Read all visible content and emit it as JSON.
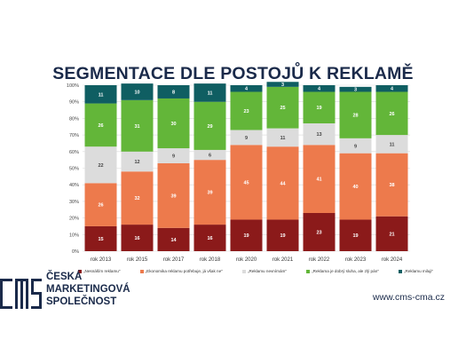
{
  "chart_data": {
    "type": "bar",
    "stacked": true,
    "title": "SEGMENTACE DLE POSTOJŮ K REKLAMĚ",
    "categories": [
      "rok 2013",
      "rok 2015",
      "rok 2017",
      "rok 2018",
      "rok 2020",
      "rok 2021",
      "rok 2022",
      "rok 2023",
      "rok 2024"
    ],
    "ylim": [
      0,
      100
    ],
    "yticks": [
      "0%",
      "10%",
      "20%",
      "30%",
      "40%",
      "50%",
      "60%",
      "70%",
      "80%",
      "90%",
      "100%"
    ],
    "grid": true,
    "legend_position": "bottom",
    "series": [
      {
        "name": "„Nesnáším reklamu\"",
        "color": "#8b1a1a",
        "values": [
          15,
          16,
          14,
          16,
          19,
          19,
          23,
          19,
          21
        ]
      },
      {
        "name": "„Ekonomika reklamu potřebuje, já však ne\"",
        "color": "#ed7a4c",
        "values": [
          26,
          32,
          39,
          39,
          45,
          44,
          41,
          40,
          38
        ]
      },
      {
        "name": "„Reklamu nevnímám\"",
        "color": "#dcdcdc",
        "values": [
          22,
          12,
          9,
          6,
          9,
          11,
          13,
          9,
          11
        ]
      },
      {
        "name": "„Reklama je dobrý sluha, ale zlý pán\"",
        "color": "#63b639",
        "values": [
          26,
          31,
          30,
          29,
          23,
          25,
          19,
          28,
          26
        ]
      },
      {
        "name": "„Reklamu miluji\"",
        "color": "#0f5e62",
        "values": [
          11,
          10,
          8,
          11,
          4,
          3,
          4,
          3,
          4
        ]
      }
    ]
  },
  "logo": {
    "line1": "ČESKÁ",
    "line2": "MARKETINGOVÁ",
    "line3": "SPOLEČNOST"
  },
  "website": "www.cms-cma.cz"
}
